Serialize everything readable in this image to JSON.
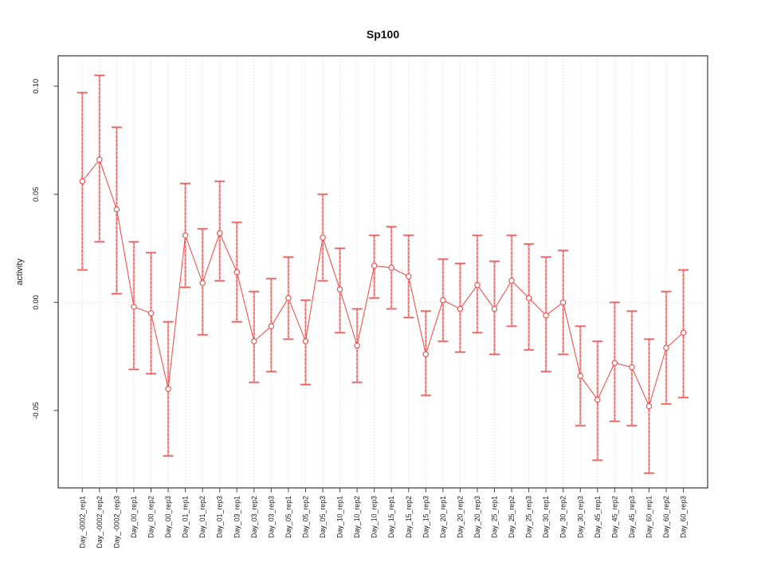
{
  "chart_data": {
    "type": "line",
    "title": "Sp100",
    "ylabel": "activity",
    "xlabel": "",
    "legend": "none",
    "grid": "vertical dotted gridlines at each category; dotted horizontal reference line at y=0",
    "ylim": [
      -0.086,
      0.114
    ],
    "yticks": [
      0.1,
      0.05,
      0.0,
      -0.05
    ],
    "ytick_labels": [
      "0.10",
      "0.05",
      "0.00",
      "-0.05"
    ],
    "colors": {
      "point_stroke": "#e4504e",
      "line": "#ef5350",
      "errorbar_light": "#f6a0a0",
      "errorbar_dark": "#e4504e",
      "axis": "#454545",
      "grid": "#d9d9d9",
      "text": "#1a1a1a"
    },
    "marker": "open-circle",
    "categories": [
      "Day_-0002_rep1",
      "Day_-0002_rep2",
      "Day_-0002_rep3",
      "Day_00_rep1",
      "Day_00_rep2",
      "Day_00_rep3",
      "Day_01_rep1",
      "Day_01_rep2",
      "Day_01_rep3",
      "Day_03_rep1",
      "Day_03_rep2",
      "Day_03_rep3",
      "Day_05_rep1",
      "Day_05_rep2",
      "Day_05_rep3",
      "Day_10_rep1",
      "Day_10_rep2",
      "Day_10_rep3",
      "Day_15_rep1",
      "Day_15_rep2",
      "Day_15_rep3",
      "Day_20_rep1",
      "Day_20_rep2",
      "Day_20_rep3",
      "Day_25_rep1",
      "Day_25_rep2",
      "Day_25_rep3",
      "Day_30_rep1",
      "Day_30_rep2",
      "Day_30_rep3",
      "Day_45_rep1",
      "Day_45_rep2",
      "Day_45_rep3",
      "Day_60_rep1",
      "Day_60_rep2",
      "Day_60_rep3"
    ],
    "series": [
      {
        "name": "activity",
        "values": [
          0.056,
          0.066,
          0.043,
          -0.002,
          -0.005,
          -0.04,
          0.031,
          0.009,
          0.032,
          0.014,
          -0.018,
          -0.011,
          0.002,
          -0.018,
          0.03,
          0.006,
          -0.02,
          0.017,
          0.016,
          0.012,
          -0.024,
          0.001,
          -0.003,
          0.008,
          -0.003,
          0.01,
          0.002,
          -0.006,
          0.0,
          -0.034,
          -0.045,
          -0.028,
          -0.03,
          -0.048,
          -0.021,
          -0.014
        ],
        "err_lo": [
          0.015,
          0.028,
          0.004,
          -0.031,
          -0.033,
          -0.071,
          0.007,
          -0.015,
          0.01,
          -0.009,
          -0.037,
          -0.032,
          -0.017,
          -0.038,
          0.01,
          -0.014,
          -0.037,
          0.002,
          -0.003,
          -0.007,
          -0.043,
          -0.018,
          -0.023,
          -0.014,
          -0.024,
          -0.011,
          -0.022,
          -0.032,
          -0.024,
          -0.057,
          -0.073,
          -0.055,
          -0.057,
          -0.079,
          -0.047,
          -0.044
        ],
        "err_hi": [
          0.097,
          0.105,
          0.081,
          0.028,
          0.023,
          -0.009,
          0.055,
          0.034,
          0.056,
          0.037,
          0.005,
          0.011,
          0.021,
          0.001,
          0.05,
          0.025,
          -0.003,
          0.031,
          0.035,
          0.031,
          -0.004,
          0.02,
          0.018,
          0.031,
          0.019,
          0.031,
          0.027,
          0.021,
          0.024,
          -0.011,
          -0.018,
          0.0,
          -0.004,
          -0.017,
          0.005,
          0.015
        ]
      }
    ]
  }
}
